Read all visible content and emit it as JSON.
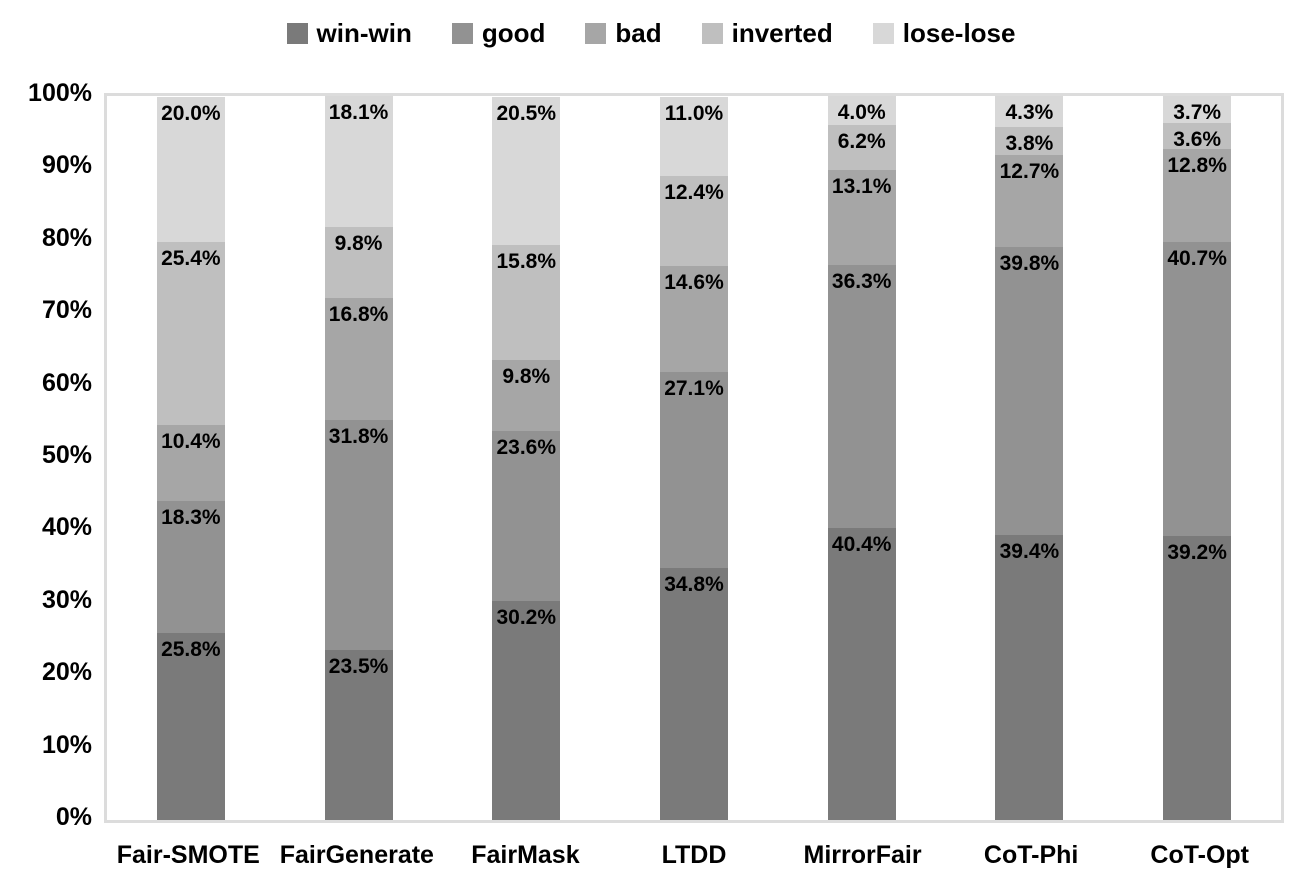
{
  "chart_data": {
    "type": "bar",
    "subtype": "stacked-100-percent",
    "title": "",
    "xlabel": "",
    "ylabel": "",
    "ylim": [
      0,
      100
    ],
    "grid": false,
    "legend_position": "top-center",
    "label_position": "inside-end",
    "label_format": "one-decimal-percent",
    "y_ticks": [
      "0%",
      "10%",
      "20%",
      "30%",
      "40%",
      "50%",
      "60%",
      "70%",
      "80%",
      "90%",
      "100%"
    ],
    "categories": [
      "Fair-SMOTE",
      "FairGenerate",
      "FairMask",
      "LTDD",
      "MirrorFair",
      "CoT-Phi",
      "CoT-Opt"
    ],
    "series": [
      {
        "name": "win-win",
        "color": "#7a7a7a",
        "values": [
          25.8,
          23.5,
          30.2,
          34.8,
          40.4,
          39.4,
          39.2
        ]
      },
      {
        "name": "good",
        "color": "#929292",
        "values": [
          18.3,
          31.8,
          23.6,
          27.1,
          36.3,
          39.8,
          40.7
        ]
      },
      {
        "name": "bad",
        "color": "#a6a6a6",
        "values": [
          10.4,
          16.8,
          9.8,
          14.6,
          13.1,
          12.7,
          12.8
        ]
      },
      {
        "name": "inverted",
        "color": "#bfbfbf",
        "values": [
          25.4,
          9.8,
          15.8,
          12.4,
          6.2,
          3.8,
          3.6
        ]
      },
      {
        "name": "lose-lose",
        "color": "#d8d8d8",
        "values": [
          20.0,
          18.1,
          20.5,
          11.0,
          4.0,
          4.3,
          3.7
        ]
      }
    ],
    "colors": {
      "plot_border": "#dcdcdc",
      "label_text": "#000000",
      "background": "#ffffff"
    }
  }
}
